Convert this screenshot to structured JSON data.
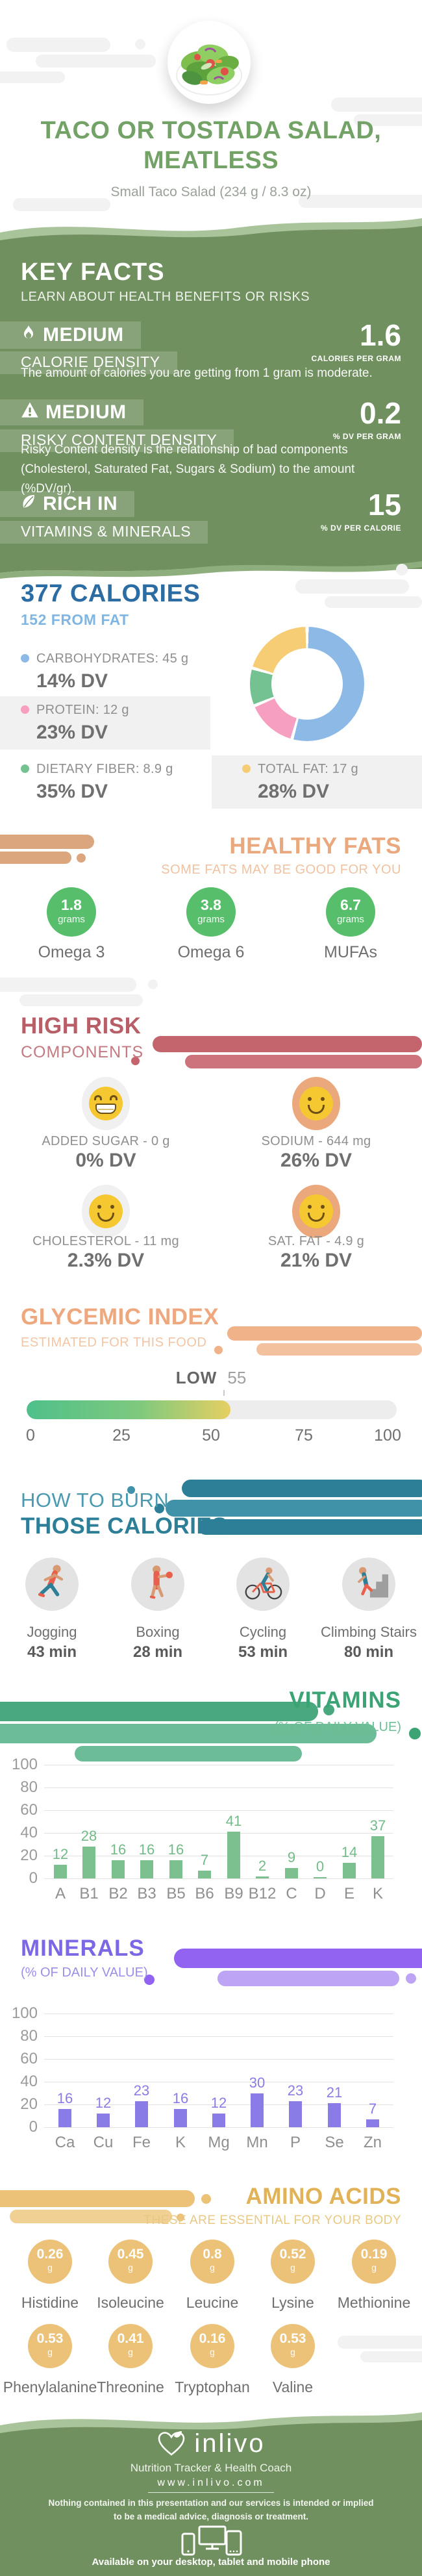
{
  "header": {
    "title_line1": "TACO OR TOSTADA SALAD,",
    "title_line2": "MEATLESS",
    "subtitle": "Small Taco Salad (234 g / 8.3 oz)",
    "image": "salad-bowl-photo"
  },
  "key_facts": {
    "title": "KEY FACTS",
    "subtitle": "LEARN ABOUT HEALTH BENEFITS OR RISKS",
    "items": [
      {
        "icon": "flame-icon",
        "badge": "MEDIUM",
        "label": "CALORIE DENSITY",
        "value": "1.6",
        "unit": "CALORIES PER GRAM",
        "description": "The amount of calories you are getting from 1 gram is moderate."
      },
      {
        "icon": "warning-icon",
        "badge": "MEDIUM",
        "label": "RISKY CONTENT DENSITY",
        "value": "0.2",
        "unit": "% DV PER GRAM",
        "description": "Risky Content density is the relationship of bad components (Cholesterol, Saturated Fat, Sugars & Sodium) to the amount (%DV/gr)."
      },
      {
        "icon": "leaf-icon",
        "badge": "RICH IN",
        "label": "VITAMINS & MINERALS",
        "value": "15",
        "unit": "% DV PER CALORIE",
        "description": ""
      }
    ]
  },
  "calories": {
    "title": "377 CALORIES",
    "subtitle": "152 FROM FAT",
    "legend": [
      {
        "label": "CARBOHYDRATES: 45 g",
        "dv": "14% DV",
        "color": "#8cb9e6"
      },
      {
        "label": "PROTEIN: 12 g",
        "dv": "23% DV",
        "color": "#f79fc0"
      },
      {
        "label": "DIETARY FIBER: 8.9 g",
        "dv": "35% DV",
        "color": "#74c191"
      },
      {
        "label": "TOTAL FAT: 17 g",
        "dv": "28% DV",
        "color": "#f6cd74"
      }
    ]
  },
  "healthy_fats": {
    "title": "HEALTHY FATS",
    "subtitle": "SOME FATS MAY BE GOOD FOR YOU",
    "items": [
      {
        "value": "1.8",
        "unit": "grams",
        "label": "Omega 3"
      },
      {
        "value": "3.8",
        "unit": "grams",
        "label": "Omega 6"
      },
      {
        "value": "6.7",
        "unit": "grams",
        "label": "MUFAs"
      }
    ]
  },
  "high_risk": {
    "title": "HIGH RISK",
    "subtitle": "COMPONENTS",
    "items": [
      {
        "face": "grin-face-icon",
        "tone": "gray",
        "label": "ADDED SUGAR - 0 g",
        "dv": "0% DV"
      },
      {
        "face": "smile-face-icon",
        "tone": "orange",
        "label": "SODIUM - 644 mg",
        "dv": "26% DV"
      },
      {
        "face": "smile-face-icon",
        "tone": "gray",
        "label": "CHOLESTEROL - 11 mg",
        "dv": "2.3% DV"
      },
      {
        "face": "smile-face-icon",
        "tone": "orange",
        "label": "SAT. FAT - 4.9 g",
        "dv": "21% DV"
      }
    ]
  },
  "glycemic": {
    "title": "GLYCEMIC INDEX",
    "subtitle": "ESTIMATED FOR THIS FOOD",
    "level": "LOW",
    "value": 55,
    "scale_max": 100,
    "scale_labels": [
      "0",
      "25",
      "50",
      "75",
      "100"
    ]
  },
  "burn": {
    "title_line1": "HOW TO BURN",
    "title_line2": "THOSE CALORIES",
    "activities": [
      {
        "icon": "jogging-icon",
        "label": "Jogging",
        "minutes": "43 min"
      },
      {
        "icon": "boxing-icon",
        "label": "Boxing",
        "minutes": "28 min"
      },
      {
        "icon": "cycling-icon",
        "label": "Cycling",
        "minutes": "53 min"
      },
      {
        "icon": "climbing-stairs-icon",
        "label": "Climbing Stairs",
        "minutes": "80 min"
      }
    ]
  },
  "vitamins": {
    "title": "VITAMINS",
    "subtitle": "(% OF DAILY VALUE)"
  },
  "minerals": {
    "title": "MINERALS",
    "subtitle": "(% OF DAILY VALUE)"
  },
  "amino_acids": {
    "title": "AMINO ACIDS",
    "subtitle": "THESE ARE ESSENTIAL FOR YOUR BODY",
    "items": [
      {
        "value": "0.26",
        "unit": "g",
        "label": "Histidine"
      },
      {
        "value": "0.45",
        "unit": "g",
        "label": "Isoleucine"
      },
      {
        "value": "0.8",
        "unit": "g",
        "label": "Leucine"
      },
      {
        "value": "0.52",
        "unit": "g",
        "label": "Lysine"
      },
      {
        "value": "0.19",
        "unit": "g",
        "label": "Methionine"
      },
      {
        "value": "0.53",
        "unit": "g",
        "label": "Phenylalanine"
      },
      {
        "value": "0.41",
        "unit": "g",
        "label": "Threonine"
      },
      {
        "value": "0.16",
        "unit": "g",
        "label": "Tryptophan"
      },
      {
        "value": "0.53",
        "unit": "g",
        "label": "Valine"
      }
    ]
  },
  "footer": {
    "brand": "inlivo",
    "tagline": "Nutrition Tracker & Health Coach",
    "website": "www.inlivo.com",
    "disclaimer_line1": "Nothing contained in this presentation and our services is intended or implied",
    "disclaimer_line2": "to be a medical advice, diagnosis or treatment.",
    "availability": "Available on your desktop, tablet and mobile phone"
  },
  "colors": {
    "brand_green": "#70905f",
    "title_green": "#73a266",
    "calories_blue": "#2b6ca3",
    "calories_light_blue": "#80b6e3",
    "carbs": "#8cb9e6",
    "protein": "#f79fc0",
    "fiber": "#74c191",
    "fat": "#f6cd74",
    "fats_orange": "#e9a87d",
    "risk_red": "#b75e67",
    "glycemic_orange": "#eda87f",
    "burn_teal": "#2d7e97",
    "vitamins_green": "#3ca374",
    "vitamin_bar": "#7cc08f",
    "minerals_purple": "#7b68e4",
    "mineral_bar": "#8a7ce6",
    "amino_gold": "#e2b259"
  },
  "chart_data": [
    {
      "id": "calorie_breakdown_donut",
      "type": "pie",
      "title": "377 CALORIES",
      "series": [
        {
          "label": "Carbohydrates",
          "grams": 45,
          "dv_percent": 14,
          "color": "#8cb9e6"
        },
        {
          "label": "Protein",
          "grams": 12,
          "dv_percent": 23,
          "color": "#f79fc0"
        },
        {
          "label": "Dietary Fiber",
          "grams": 8.9,
          "dv_percent": 35,
          "color": "#74c191"
        },
        {
          "label": "Total Fat",
          "grams": 17,
          "dv_percent": 28,
          "color": "#f6cd74"
        }
      ],
      "legend_position": "left"
    },
    {
      "id": "vitamins_dv",
      "type": "bar",
      "title": "VITAMINS (% OF DAILY VALUE)",
      "categories": [
        "A",
        "B1",
        "B2",
        "B3",
        "B5",
        "B6",
        "B9",
        "B12",
        "C",
        "D",
        "E",
        "K"
      ],
      "values": [
        12,
        28,
        16,
        16,
        16,
        7,
        41,
        2,
        9,
        0,
        14,
        37
      ],
      "ylim": [
        0,
        100
      ],
      "yticks": [
        0,
        20,
        40,
        60,
        80,
        100
      ],
      "grid": true,
      "bar_color": "#7cc08f",
      "label_color": "#72bb88"
    },
    {
      "id": "minerals_dv",
      "type": "bar",
      "title": "MINERALS (% OF DAILY VALUE)",
      "categories": [
        "Ca",
        "Cu",
        "Fe",
        "K",
        "Mg",
        "Mn",
        "P",
        "Se",
        "Zn"
      ],
      "values": [
        16,
        12,
        23,
        16,
        12,
        30,
        23,
        21,
        7
      ],
      "ylim": [
        0,
        100
      ],
      "yticks": [
        0,
        20,
        40,
        60,
        80,
        100
      ],
      "grid": true,
      "bar_color": "#8a7ce6",
      "label_color": "#8a7ce6"
    }
  ]
}
